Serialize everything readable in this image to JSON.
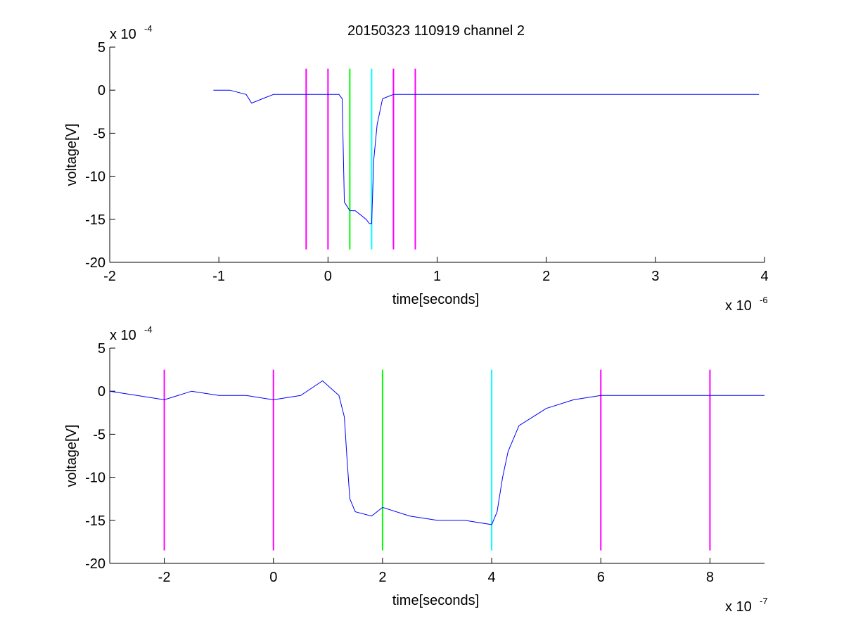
{
  "figure": {
    "title": "20150323 110919 channel 2"
  },
  "chart_data": [
    {
      "type": "line",
      "xlabel": "time[seconds]",
      "ylabel": "voltage[V]",
      "x_multiplier_base": "x 10",
      "x_multiplier_exp": "-6",
      "y_multiplier_base": "x 10",
      "y_multiplier_exp": "-4",
      "xlim": [
        -2,
        4
      ],
      "ylim": [
        -20,
        5
      ],
      "xticks": [
        -2,
        -1,
        0,
        1,
        2,
        3,
        4
      ],
      "xtick_labels": [
        "-2",
        "-1",
        "0",
        "1",
        "2",
        "3",
        "4"
      ],
      "yticks": [
        5,
        0,
        -5,
        -10,
        -15,
        -20
      ],
      "ytick_labels": [
        "5",
        "0",
        "-5",
        "-10",
        "-15",
        "-20"
      ],
      "grid": false,
      "series": [
        {
          "color": "#0000ff",
          "x": [
            -1.05,
            -0.9,
            -0.75,
            -0.7,
            -0.6,
            -0.5,
            -0.4,
            -0.3,
            -0.2,
            -0.1,
            0.0,
            0.1,
            0.13,
            0.15,
            0.2,
            0.25,
            0.3,
            0.35,
            0.38,
            0.4,
            0.42,
            0.45,
            0.5,
            0.6,
            0.7,
            0.8,
            0.9,
            1.0,
            1.2,
            1.4,
            1.6,
            1.8,
            2.0,
            2.2,
            2.4,
            2.6,
            2.8,
            3.0,
            3.2,
            3.4,
            3.6,
            3.8,
            3.95
          ],
          "y": [
            0,
            0,
            -0.5,
            -1.5,
            -1,
            -0.5,
            -0.5,
            -0.5,
            -0.5,
            -0.5,
            -0.5,
            -0.5,
            -1,
            -13,
            -14,
            -14,
            -14.5,
            -15,
            -15.5,
            -15.5,
            -8,
            -4,
            -1,
            -0.5,
            -0.5,
            -0.5,
            -0.5,
            -0.5,
            -0.5,
            -0.5,
            -0.5,
            -0.5,
            -0.5,
            -0.5,
            -0.5,
            -0.5,
            -0.5,
            -0.5,
            -0.5,
            -0.5,
            -0.5,
            -0.5,
            -0.5
          ]
        }
      ],
      "vlines": [
        {
          "x": -0.2,
          "color": "#ff00ff"
        },
        {
          "x": 0.0,
          "color": "#ff00ff"
        },
        {
          "x": 0.2,
          "color": "#00ff00"
        },
        {
          "x": 0.4,
          "color": "#00ffff"
        },
        {
          "x": 0.6,
          "color": "#ff00ff"
        },
        {
          "x": 0.8,
          "color": "#ff00ff"
        }
      ],
      "vline_range": [
        -18.5,
        2.5
      ]
    },
    {
      "type": "line",
      "xlabel": "time[seconds]",
      "ylabel": "voltage[V]",
      "x_multiplier_base": "x 10",
      "x_multiplier_exp": "-7",
      "y_multiplier_base": "x 10",
      "y_multiplier_exp": "-4",
      "xlim": [
        -3,
        9
      ],
      "ylim": [
        -20,
        5
      ],
      "xticks": [
        -2,
        0,
        2,
        4,
        6,
        8
      ],
      "xtick_labels": [
        "-2",
        "0",
        "2",
        "4",
        "6",
        "8"
      ],
      "yticks": [
        5,
        0,
        -5,
        -10,
        -15,
        -20
      ],
      "ytick_labels": [
        "5",
        "0",
        "-5",
        "-10",
        "-15",
        "-20"
      ],
      "grid": false,
      "series": [
        {
          "color": "#0000ff",
          "x": [
            -3.0,
            -2.5,
            -2.0,
            -1.5,
            -1.0,
            -0.5,
            0.0,
            0.5,
            0.9,
            1.2,
            1.3,
            1.35,
            1.4,
            1.5,
            1.8,
            2.0,
            2.5,
            3.0,
            3.5,
            4.0,
            4.1,
            4.2,
            4.3,
            4.5,
            5.0,
            5.5,
            6.0,
            7.0,
            8.0,
            9.0
          ],
          "y": [
            0,
            -0.5,
            -1,
            0,
            -0.5,
            -0.5,
            -1,
            -0.5,
            1.2,
            -0.5,
            -3,
            -8,
            -12.5,
            -14,
            -14.5,
            -13.5,
            -14.5,
            -15,
            -15,
            -15.5,
            -14,
            -10,
            -7,
            -4,
            -2,
            -1,
            -0.5,
            -0.5,
            -0.5,
            -0.5
          ]
        }
      ],
      "vlines": [
        {
          "x": -2,
          "color": "#ff00ff"
        },
        {
          "x": 0,
          "color": "#ff00ff"
        },
        {
          "x": 2,
          "color": "#00ff00"
        },
        {
          "x": 4,
          "color": "#00ffff"
        },
        {
          "x": 6,
          "color": "#ff00ff"
        },
        {
          "x": 8,
          "color": "#ff00ff"
        }
      ],
      "vline_range": [
        -18.5,
        2.5
      ]
    }
  ]
}
